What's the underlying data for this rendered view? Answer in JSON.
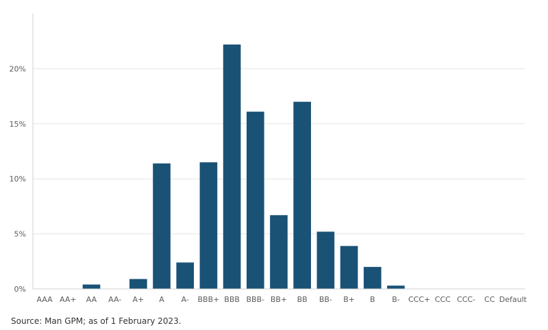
{
  "chart_data": {
    "type": "bar",
    "title": "",
    "xlabel": "",
    "ylabel": "",
    "categories": [
      "AAA",
      "AA+",
      "AA",
      "AA-",
      "A+",
      "A",
      "A-",
      "BBB+",
      "BBB",
      "BBB-",
      "BB+",
      "BB",
      "BB-",
      "B+",
      "B",
      "B-",
      "CCC+",
      "CCC",
      "CCC-",
      "CC",
      "Default"
    ],
    "values": [
      0,
      0,
      0.4,
      0,
      0.9,
      11.4,
      2.4,
      11.5,
      22.2,
      16.1,
      6.7,
      17.0,
      5.2,
      3.9,
      2.0,
      0.3,
      0,
      0,
      0,
      0,
      0
    ],
    "ylim": [
      0,
      25
    ],
    "yticks": [
      0,
      5,
      10,
      15,
      20
    ],
    "ytick_labels": [
      "0%",
      "5%",
      "10%",
      "15%",
      "20%"
    ],
    "grid": true,
    "bar_color": "#1a5276"
  },
  "source_note": "Source: Man GPM; as of 1 February 2023."
}
